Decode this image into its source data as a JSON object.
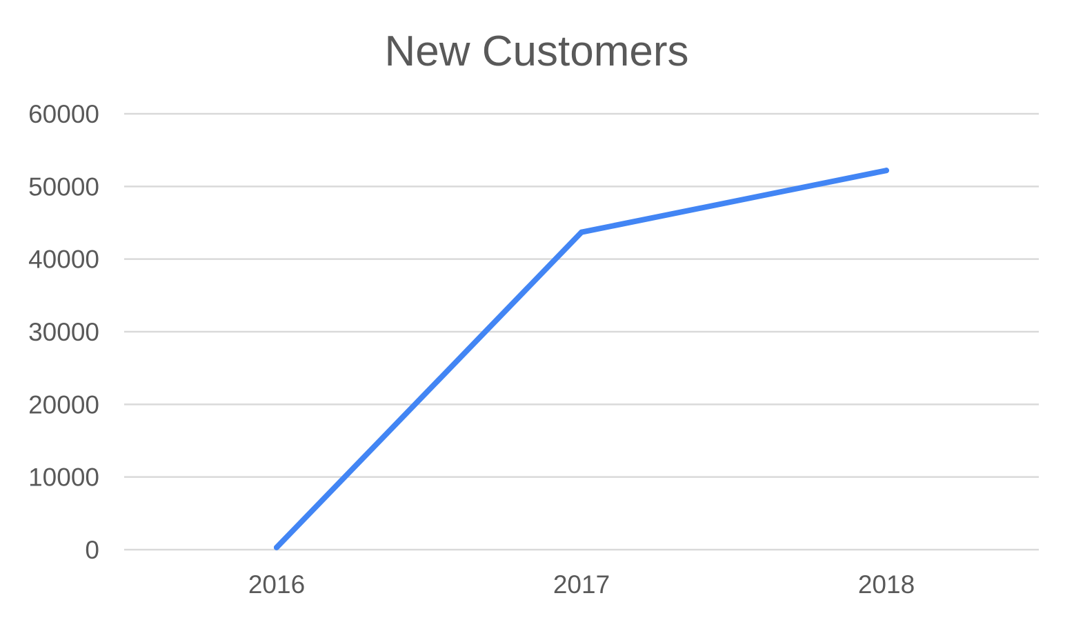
{
  "chart_data": {
    "type": "line",
    "title": "New Customers",
    "categories": [
      "2016",
      "2017",
      "2018"
    ],
    "series": [
      {
        "values": [
          300,
          43700,
          52200
        ]
      }
    ],
    "xlabel": "",
    "ylabel": "",
    "ylim": [
      0,
      60000
    ],
    "yticks": [
      "0",
      "10000",
      "20000",
      "30000",
      "40000",
      "50000",
      "60000"
    ],
    "grid": true,
    "legend": "none",
    "colors": {
      "series": "#4285f4",
      "grid": "#d9d9d9",
      "text": "#595959"
    }
  }
}
